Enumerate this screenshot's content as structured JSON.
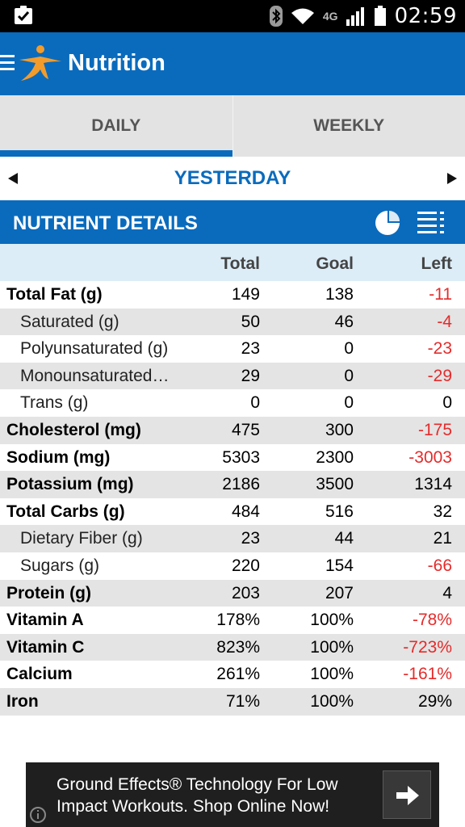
{
  "status_bar": {
    "network_label": "4G",
    "time": "02:59",
    "icons": [
      "clipboard-check-icon",
      "bluetooth-icon",
      "wifi-icon",
      "signal-icon",
      "battery-icon"
    ]
  },
  "app_bar": {
    "title": "Nutrition",
    "logo_color": "#f39c2b"
  },
  "tabs": [
    {
      "label": "DAILY",
      "active": true
    },
    {
      "label": "WEEKLY",
      "active": false
    }
  ],
  "date_nav": {
    "label": "YESTERDAY"
  },
  "section": {
    "title": "NUTRIENT DETAILS"
  },
  "table": {
    "headers": {
      "total": "Total",
      "goal": "Goal",
      "left": "Left"
    },
    "rows": [
      {
        "name": "Total Fat (g)",
        "total": "149",
        "goal": "138",
        "left": "-11",
        "sub": false
      },
      {
        "name": "Saturated (g)",
        "total": "50",
        "goal": "46",
        "left": "-4",
        "sub": true
      },
      {
        "name": "Polyunsaturated (g)",
        "total": "23",
        "goal": "0",
        "left": "-23",
        "sub": true
      },
      {
        "name": "Monounsaturated…",
        "total": "29",
        "goal": "0",
        "left": "-29",
        "sub": true
      },
      {
        "name": "Trans (g)",
        "total": "0",
        "goal": "0",
        "left": "0",
        "sub": true
      },
      {
        "name": "Cholesterol (mg)",
        "total": "475",
        "goal": "300",
        "left": "-175",
        "sub": false
      },
      {
        "name": "Sodium (mg)",
        "total": "5303",
        "goal": "2300",
        "left": "-3003",
        "sub": false
      },
      {
        "name": "Potassium (mg)",
        "total": "2186",
        "goal": "3500",
        "left": "1314",
        "sub": false
      },
      {
        "name": "Total Carbs (g)",
        "total": "484",
        "goal": "516",
        "left": "32",
        "sub": false
      },
      {
        "name": "Dietary Fiber (g)",
        "total": "23",
        "goal": "44",
        "left": "21",
        "sub": true
      },
      {
        "name": "Sugars (g)",
        "total": "220",
        "goal": "154",
        "left": "-66",
        "sub": true
      },
      {
        "name": "Protein (g)",
        "total": "203",
        "goal": "207",
        "left": "4",
        "sub": false
      },
      {
        "name": "Vitamin A",
        "total": "178%",
        "goal": "100%",
        "left": "-78%",
        "sub": false
      },
      {
        "name": "Vitamin C",
        "total": "823%",
        "goal": "100%",
        "left": "-723%",
        "sub": false
      },
      {
        "name": "Calcium",
        "total": "261%",
        "goal": "100%",
        "left": "-161%",
        "sub": false
      },
      {
        "name": "Iron",
        "total": "71%",
        "goal": "100%",
        "left": "29%",
        "sub": false
      }
    ]
  },
  "ad": {
    "text": "Ground Effects® Technology For Low Impact Workouts. Shop Online Now!"
  },
  "colors": {
    "primary": "#0a6bbd",
    "negative": "#e52b2b",
    "header_row": "#dcedf8",
    "alt_row": "#e4e4e4"
  }
}
